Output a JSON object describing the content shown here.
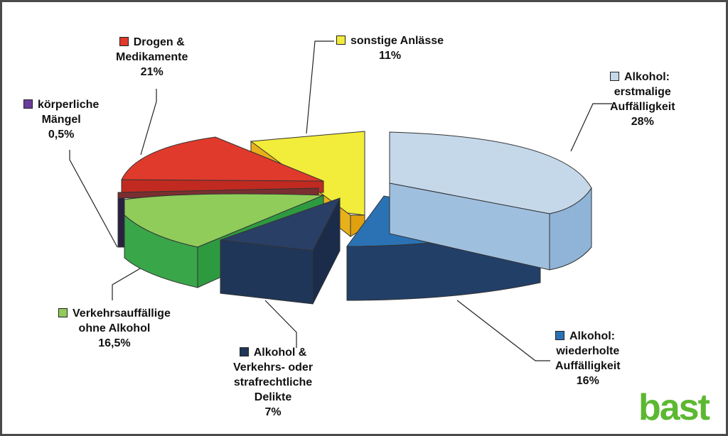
{
  "chart_data": {
    "type": "pie",
    "variant": "3d-exploded",
    "title": "",
    "slices": [
      {
        "key": "alk_erst",
        "lines": [
          "Alkohol:",
          "erstmalige",
          "Auffälligkeit"
        ],
        "value_label": "28%",
        "value": 28,
        "color": "#c5d8ea"
      },
      {
        "key": "alk_wied",
        "lines": [
          "Alkohol:",
          "wiederholte",
          "Auffälligkeit"
        ],
        "value_label": "16%",
        "value": 16,
        "color": "#2b72b4"
      },
      {
        "key": "alk_delikte",
        "lines": [
          "Alkohol &",
          "Verkehrs- oder",
          "strafrechtliche",
          "Delikte"
        ],
        "value_label": "7%",
        "value": 7,
        "color": "#1f3658"
      },
      {
        "key": "verkehr",
        "lines": [
          "Verkehrsauffällige",
          "ohne Alkohol"
        ],
        "value_label": "16,5%",
        "value": 16.5,
        "color": "#8fcc5a"
      },
      {
        "key": "koerper",
        "lines": [
          "körperliche",
          "Mängel"
        ],
        "value_label": "0,5%",
        "value": 0.5,
        "color": "#6a3d9a"
      },
      {
        "key": "drogen",
        "lines": [
          "Drogen &",
          "Medikamente"
        ],
        "value_label": "21%",
        "value": 21,
        "color": "#e03a2c"
      },
      {
        "key": "sonstige",
        "lines": [
          "sonstige Anlässe"
        ],
        "value_label": "11%",
        "value": 11,
        "color": "#f2ec3a"
      }
    ],
    "legend": "labels-with-leader-lines"
  },
  "logo": {
    "text": "bast",
    "color": "#5cb832"
  }
}
